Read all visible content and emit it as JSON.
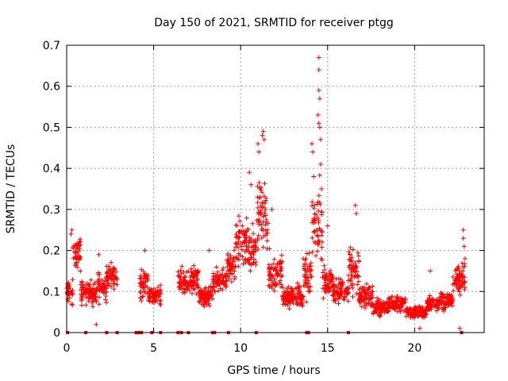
{
  "chart_data": {
    "type": "scatter",
    "title": "Day 150 of 2021, SRMTID for receiver ptgg",
    "xlabel": "GPS time / hours",
    "ylabel": "SRMTID / TECUs",
    "xlim": [
      0,
      24
    ],
    "ylim": [
      0,
      0.7
    ],
    "xticks": [
      0,
      5,
      10,
      15,
      20
    ],
    "yticks": [
      0,
      0.1,
      0.2,
      0.3,
      0.4,
      0.5,
      0.6,
      0.7
    ],
    "xtick_labels": [
      "0",
      "5",
      "10",
      "15",
      "20"
    ],
    "ytick_labels": [
      "0",
      "0.1",
      "0.2",
      "0.3",
      "0.4",
      "0.5",
      "0.6",
      "0.7"
    ],
    "grid": true,
    "marker": "plus",
    "color": "#ff0000",
    "clusters": [
      {
        "start": 0.0,
        "end": 0.35,
        "base": 0.1,
        "spread": 0.04
      },
      {
        "start": 0.35,
        "end": 0.8,
        "base": 0.19,
        "spread": 0.05
      },
      {
        "start": 0.8,
        "end": 1.3,
        "base": 0.1,
        "spread": 0.04
      },
      {
        "start": 1.3,
        "end": 1.8,
        "base": 0.1,
        "spread": 0.05
      },
      {
        "start": 1.8,
        "end": 2.3,
        "base": 0.11,
        "spread": 0.05
      },
      {
        "start": 2.3,
        "end": 2.9,
        "base": 0.14,
        "spread": 0.04
      },
      {
        "start": 4.2,
        "end": 4.7,
        "base": 0.12,
        "spread": 0.05
      },
      {
        "start": 4.7,
        "end": 5.4,
        "base": 0.09,
        "spread": 0.03
      },
      {
        "start": 6.4,
        "end": 7.0,
        "base": 0.12,
        "spread": 0.05
      },
      {
        "start": 7.0,
        "end": 7.6,
        "base": 0.13,
        "spread": 0.05
      },
      {
        "start": 7.6,
        "end": 8.4,
        "base": 0.09,
        "spread": 0.03
      },
      {
        "start": 8.4,
        "end": 9.2,
        "base": 0.13,
        "spread": 0.04
      },
      {
        "start": 9.2,
        "end": 9.7,
        "base": 0.16,
        "spread": 0.05
      },
      {
        "start": 9.7,
        "end": 10.4,
        "base": 0.22,
        "spread": 0.08
      },
      {
        "start": 10.4,
        "end": 10.9,
        "base": 0.2,
        "spread": 0.08
      },
      {
        "start": 10.9,
        "end": 11.6,
        "base": 0.28,
        "spread": 0.12
      },
      {
        "start": 11.6,
        "end": 12.4,
        "base": 0.15,
        "spread": 0.06
      },
      {
        "start": 12.4,
        "end": 13.6,
        "base": 0.09,
        "spread": 0.04
      },
      {
        "start": 13.6,
        "end": 14.1,
        "base": 0.14,
        "spread": 0.08
      },
      {
        "start": 14.1,
        "end": 14.7,
        "base": 0.25,
        "spread": 0.15
      },
      {
        "start": 14.7,
        "end": 15.3,
        "base": 0.12,
        "spread": 0.05
      },
      {
        "start": 15.3,
        "end": 16.2,
        "base": 0.1,
        "spread": 0.04
      },
      {
        "start": 16.2,
        "end": 16.8,
        "base": 0.15,
        "spread": 0.07
      },
      {
        "start": 16.8,
        "end": 17.6,
        "base": 0.09,
        "spread": 0.04
      },
      {
        "start": 17.6,
        "end": 18.5,
        "base": 0.06,
        "spread": 0.03
      },
      {
        "start": 18.5,
        "end": 19.5,
        "base": 0.07,
        "spread": 0.025
      },
      {
        "start": 19.5,
        "end": 20.7,
        "base": 0.05,
        "spread": 0.02
      },
      {
        "start": 20.7,
        "end": 21.4,
        "base": 0.07,
        "spread": 0.03
      },
      {
        "start": 21.4,
        "end": 22.2,
        "base": 0.08,
        "spread": 0.03
      },
      {
        "start": 22.2,
        "end": 22.9,
        "base": 0.13,
        "spread": 0.05
      }
    ],
    "outliers": [
      {
        "x": 0.3,
        "y": 0.25
      },
      {
        "x": 0.25,
        "y": 0.24
      },
      {
        "x": 1.85,
        "y": 0.19
      },
      {
        "x": 1.7,
        "y": 0.02
      },
      {
        "x": 4.5,
        "y": 0.2
      },
      {
        "x": 8.2,
        "y": 0.2
      },
      {
        "x": 10.5,
        "y": 0.39
      },
      {
        "x": 10.6,
        "y": 0.36
      },
      {
        "x": 11.0,
        "y": 0.46
      },
      {
        "x": 11.05,
        "y": 0.44
      },
      {
        "x": 11.3,
        "y": 0.49
      },
      {
        "x": 11.25,
        "y": 0.48
      },
      {
        "x": 11.35,
        "y": 0.47
      },
      {
        "x": 11.8,
        "y": 0.3
      },
      {
        "x": 14.1,
        "y": 0.46
      },
      {
        "x": 14.15,
        "y": 0.44
      },
      {
        "x": 14.2,
        "y": 0.38
      },
      {
        "x": 14.45,
        "y": 0.53
      },
      {
        "x": 14.5,
        "y": 0.51
      },
      {
        "x": 14.55,
        "y": 0.5
      },
      {
        "x": 14.5,
        "y": 0.67
      },
      {
        "x": 14.5,
        "y": 0.64
      },
      {
        "x": 14.5,
        "y": 0.59
      },
      {
        "x": 14.55,
        "y": 0.57
      },
      {
        "x": 14.6,
        "y": 0.47
      },
      {
        "x": 14.6,
        "y": 0.41
      },
      {
        "x": 14.65,
        "y": 0.35
      },
      {
        "x": 15.0,
        "y": 0.26
      },
      {
        "x": 16.6,
        "y": 0.31
      },
      {
        "x": 16.65,
        "y": 0.29
      },
      {
        "x": 20.9,
        "y": 0.15
      },
      {
        "x": 22.8,
        "y": 0.25
      },
      {
        "x": 22.8,
        "y": 0.23
      },
      {
        "x": 22.85,
        "y": 0.21
      },
      {
        "x": 22.9,
        "y": 0.18
      },
      {
        "x": 20.3,
        "y": 0.01
      },
      {
        "x": 22.6,
        "y": 0.01
      }
    ],
    "zero_markers_x": [
      0.05,
      1.1,
      2.3,
      2.9,
      4.0,
      4.1,
      4.2,
      4.3,
      4.9,
      5.4,
      6.4,
      6.6,
      7.0,
      8.4,
      8.5,
      9.3,
      10.9,
      13.8,
      13.9,
      16.2,
      22.7
    ]
  }
}
